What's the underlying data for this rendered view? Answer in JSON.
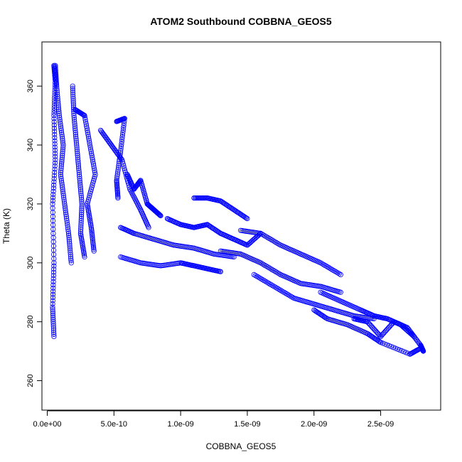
{
  "chart_data": {
    "type": "scatter",
    "title": "ATOM2 Southbound COBBNA_GEOS5",
    "xlabel": "COBBNA_GEOS5",
    "ylabel": "Theta (K)",
    "xlim": [
      -4e-11,
      2.95e-09
    ],
    "ylim": [
      250,
      375
    ],
    "x_ticks": [
      {
        "value": 0,
        "label": "0.0e+00"
      },
      {
        "value": 5e-10,
        "label": "5.0e-10"
      },
      {
        "value": 1e-09,
        "label": "1.0e-09"
      },
      {
        "value": 1.5e-09,
        "label": "1.5e-09"
      },
      {
        "value": 2e-09,
        "label": "2.0e-09"
      },
      {
        "value": 2.5e-09,
        "label": "2.5e-09"
      }
    ],
    "y_ticks": [
      {
        "value": 260,
        "label": "260"
      },
      {
        "value": 280,
        "label": "280"
      },
      {
        "value": 300,
        "label": "300"
      },
      {
        "value": 320,
        "label": "320"
      },
      {
        "value": 340,
        "label": "340"
      },
      {
        "value": 360,
        "label": "360"
      }
    ],
    "marker": "open-circle",
    "line": true,
    "color": "#0000ff",
    "grid": false,
    "series": [
      {
        "points": [
          [
            5e-11,
            275
          ],
          [
            4e-11,
            285
          ],
          [
            5e-11,
            300
          ],
          [
            4e-11,
            320
          ],
          [
            6e-11,
            335
          ],
          [
            5e-11,
            350
          ],
          [
            6e-11,
            362
          ],
          [
            5e-11,
            367
          ]
        ]
      },
      {
        "points": [
          [
            6e-11,
            367
          ],
          [
            7e-11,
            360
          ],
          [
            9e-11,
            350
          ],
          [
            1.2e-10,
            340
          ],
          [
            1e-10,
            330
          ],
          [
            1.3e-10,
            320
          ],
          [
            1.6e-10,
            310
          ],
          [
            1.8e-10,
            300
          ]
        ]
      },
      {
        "points": [
          [
            1.9e-10,
            360
          ],
          [
            2e-10,
            350
          ],
          [
            2.2e-10,
            340
          ],
          [
            2.4e-10,
            330
          ],
          [
            2.6e-10,
            320
          ],
          [
            2.5e-10,
            310
          ],
          [
            2.8e-10,
            302
          ]
        ]
      },
      {
        "points": [
          [
            2.1e-10,
            352
          ],
          [
            2.8e-10,
            350
          ],
          [
            3.2e-10,
            340
          ],
          [
            3.6e-10,
            330
          ],
          [
            3e-10,
            320
          ],
          [
            3.3e-10,
            312
          ],
          [
            3.5e-10,
            304
          ]
        ]
      },
      {
        "points": [
          [
            4e-10,
            345
          ],
          [
            4.8e-10,
            340
          ],
          [
            5.6e-10,
            335
          ],
          [
            6.2e-10,
            325
          ],
          [
            7e-10,
            318
          ],
          [
            7.6e-10,
            312
          ]
        ]
      },
      {
        "points": [
          [
            5.2e-10,
            348
          ],
          [
            5.8e-10,
            349
          ],
          [
            5.5e-10,
            338
          ],
          [
            5.2e-10,
            328
          ],
          [
            5.3e-10,
            322
          ]
        ]
      },
      {
        "points": [
          [
            6e-10,
            330
          ],
          [
            6.5e-10,
            325
          ],
          [
            7e-10,
            328
          ],
          [
            7.5e-10,
            320
          ],
          [
            8e-10,
            318
          ],
          [
            8.5e-10,
            316
          ]
        ]
      },
      {
        "points": [
          [
            1.1e-09,
            322
          ],
          [
            1.2e-09,
            322
          ],
          [
            1.3e-09,
            321
          ],
          [
            1.4e-09,
            318
          ],
          [
            1.5e-09,
            315
          ]
        ]
      },
      {
        "points": [
          [
            9e-10,
            315
          ],
          [
            1e-09,
            313
          ],
          [
            1.1e-09,
            312
          ],
          [
            1.2e-09,
            313
          ],
          [
            1.3e-09,
            310
          ],
          [
            1.4e-09,
            308
          ],
          [
            1.5e-09,
            306
          ],
          [
            1.6e-09,
            310
          ]
        ]
      },
      {
        "points": [
          [
            5.5e-10,
            312
          ],
          [
            6.5e-10,
            310
          ],
          [
            8e-10,
            308
          ],
          [
            9.5e-10,
            306
          ],
          [
            1.1e-09,
            305
          ],
          [
            1.25e-09,
            303
          ],
          [
            1.4e-09,
            302
          ]
        ]
      },
      {
        "points": [
          [
            5.5e-10,
            302
          ],
          [
            7e-10,
            300
          ],
          [
            8.5e-10,
            299
          ],
          [
            1e-09,
            300
          ],
          [
            1.1e-09,
            299
          ],
          [
            1.2e-09,
            298
          ],
          [
            1.3e-09,
            297
          ]
        ]
      },
      {
        "points": [
          [
            1.45e-09,
            311
          ],
          [
            1.6e-09,
            310
          ],
          [
            1.75e-09,
            306
          ],
          [
            1.9e-09,
            303
          ],
          [
            2.05e-09,
            300
          ],
          [
            2.2e-09,
            296
          ]
        ]
      },
      {
        "points": [
          [
            1.3e-09,
            304
          ],
          [
            1.45e-09,
            303
          ],
          [
            1.6e-09,
            300
          ],
          [
            1.75e-09,
            296
          ],
          [
            1.9e-09,
            293
          ],
          [
            2.05e-09,
            292
          ],
          [
            2.2e-09,
            290
          ]
        ]
      },
      {
        "points": [
          [
            1.55e-09,
            296
          ],
          [
            1.7e-09,
            292
          ],
          [
            1.85e-09,
            288
          ],
          [
            2e-09,
            286
          ],
          [
            2.15e-09,
            284
          ],
          [
            2.3e-09,
            282
          ],
          [
            2.45e-09,
            281
          ]
        ]
      },
      {
        "points": [
          [
            2.05e-09,
            290
          ],
          [
            2.2e-09,
            287
          ],
          [
            2.35e-09,
            284
          ],
          [
            2.45e-09,
            282
          ],
          [
            2.55e-09,
            281
          ],
          [
            2.65e-09,
            279
          ],
          [
            2.75e-09,
            275
          ]
        ]
      },
      {
        "points": [
          [
            2.3e-09,
            281
          ],
          [
            2.4e-09,
            280
          ],
          [
            2.5e-09,
            275
          ],
          [
            2.6e-09,
            280
          ],
          [
            2.7e-09,
            278
          ],
          [
            2.8e-09,
            272
          ],
          [
            2.82e-09,
            270
          ]
        ]
      },
      {
        "points": [
          [
            2e-09,
            284
          ],
          [
            2.1e-09,
            281
          ],
          [
            2.25e-09,
            279
          ],
          [
            2.4e-09,
            276
          ],
          [
            2.5e-09,
            273
          ],
          [
            2.72e-09,
            269
          ],
          [
            2.8e-09,
            271
          ]
        ]
      }
    ]
  }
}
